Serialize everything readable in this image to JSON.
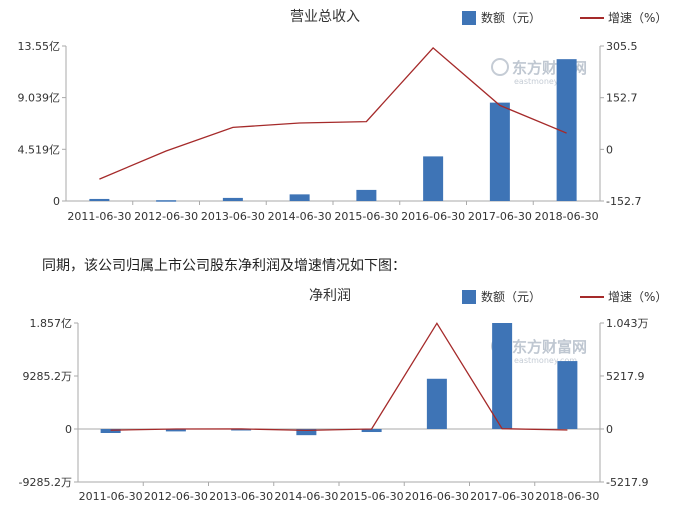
{
  "sentence": "同期，该公司归属上市公司股东净利润及增速情况如下图：",
  "watermark": {
    "name": "东方财富网",
    "url": "eastmoney.com"
  },
  "colors": {
    "bar": "#3e74b6",
    "line": "#a52a2a",
    "axis": "#aaaaaa"
  },
  "chart_data": [
    {
      "type": "bar",
      "title": "营业总收入",
      "legend": {
        "bar_label": "数额（元）",
        "line_label": "增速（%）",
        "placement": "top-right"
      },
      "categories": [
        "2011-06-30",
        "2012-06-30",
        "2013-06-30",
        "2014-06-30",
        "2015-06-30",
        "2016-06-30",
        "2017-06-30",
        "2018-06-30"
      ],
      "left_axis": {
        "ticks": [
          0,
          4.519,
          9.039,
          13.55
        ],
        "tick_labels": [
          "0",
          "4.519亿",
          "9.039亿",
          "13.55亿"
        ],
        "unit": "亿",
        "ylim": [
          0,
          13.55
        ]
      },
      "right_axis": {
        "ticks": [
          -152.7,
          0,
          152.7,
          305.5
        ],
        "tick_labels": [
          "-152.7",
          "0",
          "152.7",
          "305.5"
        ],
        "ylim": [
          -152.7,
          305.5
        ]
      },
      "series": [
        {
          "name": "数额（元）",
          "kind": "bar",
          "axis": "left",
          "values": [
            0.18,
            0.07,
            0.27,
            0.58,
            0.97,
            3.9,
            8.6,
            12.4
          ]
        },
        {
          "name": "增速（%）",
          "kind": "line",
          "axis": "right",
          "values": [
            -88,
            -5,
            65,
            78,
            82,
            300,
            130,
            48
          ]
        }
      ],
      "grid": false
    },
    {
      "type": "bar",
      "title": "净利润",
      "legend": {
        "bar_label": "数额（元）",
        "line_label": "增速（%）",
        "placement": "top-right"
      },
      "categories": [
        "2011-06-30",
        "2012-06-30",
        "2013-06-30",
        "2014-06-30",
        "2015-06-30",
        "2016-06-30",
        "2017-06-30",
        "2018-06-30"
      ],
      "left_axis": {
        "ticks": [
          -9285.2,
          0,
          9285.2,
          18570
        ],
        "tick_labels": [
          "-9285.2万",
          "0",
          "9285.2万",
          "1.857亿"
        ],
        "unit": "万",
        "ylim": [
          -9285.2,
          18570
        ]
      },
      "right_axis": {
        "ticks": [
          -5217.9,
          0,
          5217.9,
          10430
        ],
        "tick_labels": [
          "-5217.9",
          "0",
          "5217.9",
          "1.043万"
        ],
        "ylim": [
          -5217.9,
          10430
        ]
      },
      "series": [
        {
          "name": "数额（元）",
          "kind": "bar",
          "axis": "left",
          "values": [
            -700,
            -420,
            -250,
            -1080,
            -530,
            8800,
            18570,
            11900
          ]
        },
        {
          "name": "增速（%）",
          "kind": "line",
          "axis": "right",
          "values": [
            -120,
            0,
            10,
            -140,
            0,
            10400,
            30,
            -100
          ]
        }
      ],
      "grid": false
    }
  ]
}
